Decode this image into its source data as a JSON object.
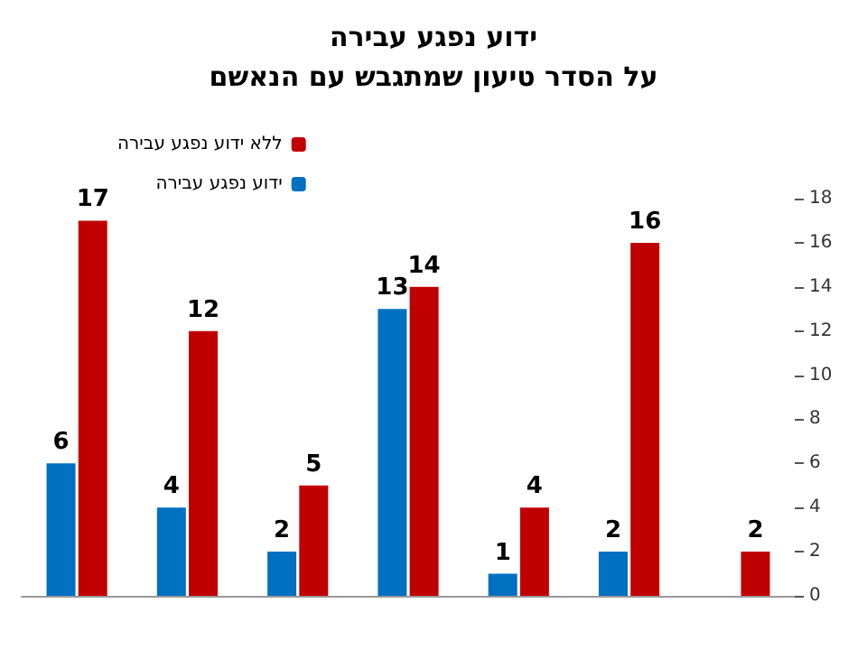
{
  "chart_data": {
    "type": "bar",
    "title": "ידוע נפגע עבירה",
    "subtitle": "על הסדר טיעון שמתגבש עם הנאשם",
    "categories": [
      null,
      null,
      null,
      null,
      null,
      null,
      null
    ],
    "series": [
      {
        "name": "ללא ידוע נפגע עבירה",
        "color": "#c00000",
        "values": [
          17,
          12,
          5,
          14,
          4,
          16,
          2
        ]
      },
      {
        "name": "ידוע נפגע עבירה",
        "color": "#0070c0",
        "values": [
          6,
          4,
          2,
          13,
          1,
          2,
          null
        ]
      }
    ],
    "ylim": [
      0,
      18
    ],
    "yticks": [
      0,
      2,
      4,
      6,
      8,
      10,
      12,
      14,
      16,
      18
    ],
    "grid": false,
    "legend": "top left",
    "data_labels": true
  }
}
